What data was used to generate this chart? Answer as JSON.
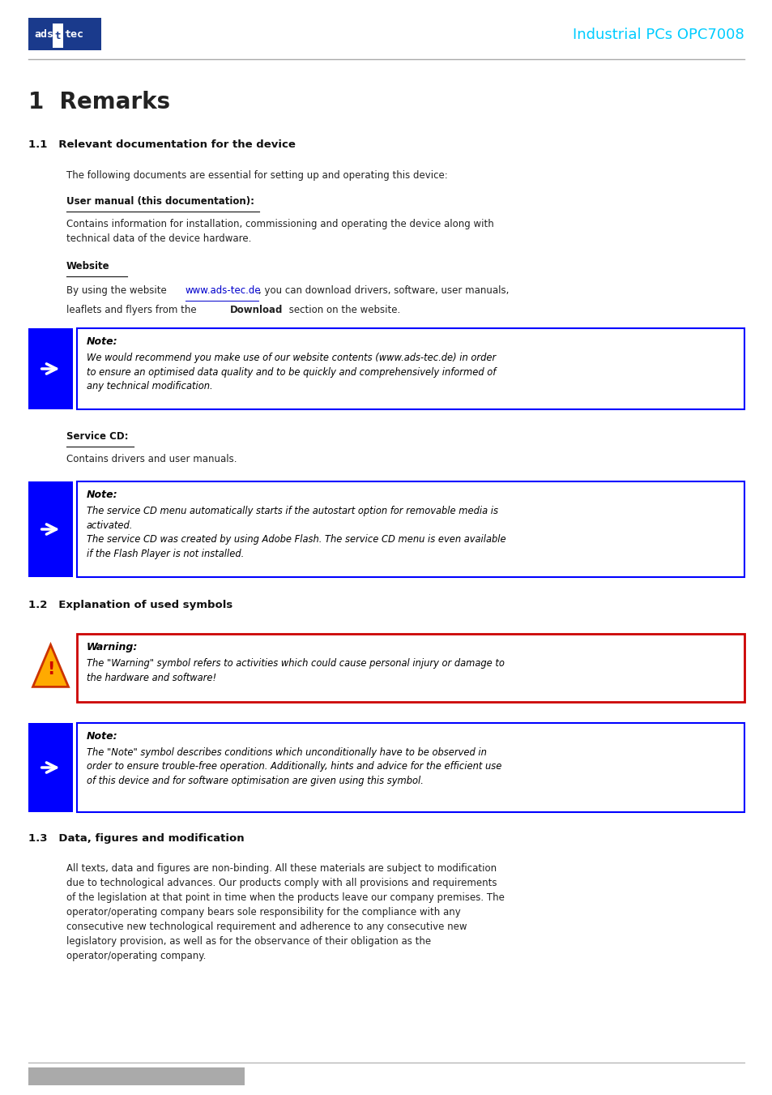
{
  "page_width": 9.54,
  "page_height": 13.51,
  "bg_color": "#ffffff",
  "header_line_color": "#aaaaaa",
  "header_title": "Industrial PCs OPC7008",
  "header_title_color": "#00ccff",
  "logo_bg": "#1a3a8c",
  "section1_title": "1  Remarks",
  "section11_title": "1.1   Relevant documentation for the device",
  "section12_title": "1.2   Explanation of used symbols",
  "section13_title": "1.3   Data, figures and modification",
  "sub11_intro": "The following documents are essential for setting up and operating this device:",
  "sub11_usermanual_label": "User manual (this documentation):",
  "sub11_usermanual_text": "Contains information for installation, commissioning and operating the device along with\ntechnical data of the device hardware.",
  "sub11_website_label": "Website",
  "sub11_website_link": "www.ads-tec.de",
  "note1_title": "Note:",
  "note1_text": "We would recommend you make use of our website contents (www.ads-tec.de) in order\nto ensure an optimised data quality and to be quickly and comprehensively informed of\nany technical modification.",
  "servicecd_label": "Service CD:",
  "servicecd_text": "Contains drivers and user manuals.",
  "note2_title": "Note:",
  "note2_text": "The service CD menu automatically starts if the autostart option for removable media is\nactivated.\nThe service CD was created by using Adobe Flash. The service CD menu is even available\nif the Flash Player is not installed.",
  "warning_title": "Warning:",
  "warning_text": "The \"Warning\" symbol refers to activities which could cause personal injury or damage to\nthe hardware and software!",
  "note3_title": "Note:",
  "note3_text": "The \"Note\" symbol describes conditions which unconditionally have to be observed in\norder to ensure trouble-free operation. Additionally, hints and advice for the efficient use\nof this device and for software optimisation are given using this symbol.",
  "section13_text": "All texts, data and figures are non-binding. All these materials are subject to modification\ndue to technological advances. Our products comply with all provisions and requirements\nof the legislation at that point in time when the products leave our company premises. The\noperator/operating company bears sole responsibility for the compliance with any\nconsecutive new technological requirement and adherence to any consecutive new\nlegislatory provision, as well as for the observance of their obligation as the\noperator/operating company.",
  "blue_color": "#0000ff",
  "dark_blue": "#1a3a8c",
  "red_color": "#cc0000",
  "footer_bar_color": "#aaaaaa",
  "footer_bar_width": 0.28
}
